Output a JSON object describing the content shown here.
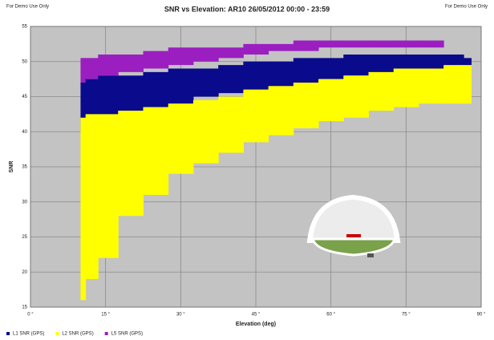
{
  "chart_data": {
    "type": "range",
    "title": "SNR vs Elevation: AR10 26/05/2012 00:00 - 23:59",
    "corner_left": "For Demo Use Only",
    "corner_right": "For Demo Use Only",
    "x_label": "Elevation (deg)",
    "y_label": "SNR",
    "x": [
      10,
      12,
      15,
      20,
      25,
      30,
      35,
      40,
      45,
      50,
      55,
      60,
      65,
      70,
      75,
      80,
      85,
      88
    ],
    "series": [
      {
        "name": "L5 SNR (GPS)",
        "color": "#9b1fc0",
        "low": [
          47,
          47.5,
          48,
          48.5,
          49,
          49.5,
          50,
          50.5,
          51,
          51.5,
          51.5,
          52,
          52,
          52,
          52,
          52,
          null,
          null
        ],
        "high": [
          50.5,
          50.5,
          51,
          51,
          51.5,
          52,
          52,
          52,
          52.5,
          52.5,
          53,
          53,
          53,
          53,
          53,
          53,
          null,
          null
        ]
      },
      {
        "name": "L1 SNR (GPS)",
        "color": "#0a0a8c",
        "low": [
          40,
          41,
          42,
          43,
          43.5,
          44,
          45,
          45.5,
          46,
          46.5,
          47,
          47.5,
          48,
          48,
          48.5,
          49,
          49,
          49
        ],
        "high": [
          47,
          47.5,
          48,
          48,
          48.5,
          49,
          49,
          49.5,
          50,
          50,
          50.5,
          50.5,
          51,
          51,
          51,
          51,
          51,
          50.5
        ]
      },
      {
        "name": "L2 SNR (GPS)",
        "color": "#ffff00",
        "low": [
          16,
          19,
          22,
          28,
          31,
          34,
          35.5,
          37,
          38.5,
          39.5,
          40.5,
          41.5,
          42,
          43,
          43.5,
          44,
          44,
          44
        ],
        "high": [
          42,
          42.5,
          42.5,
          43,
          43.5,
          44,
          44.5,
          45,
          46,
          46.5,
          47,
          47.5,
          48,
          48.5,
          49,
          49,
          49.5,
          49.5
        ]
      }
    ],
    "legend_order": [
      1,
      2,
      0
    ],
    "xlim": [
      0,
      90
    ],
    "xticks": [
      {
        "value": 0,
        "label": "0 °"
      },
      {
        "value": 15,
        "label": "15 °"
      },
      {
        "value": 30,
        "label": "30 °"
      },
      {
        "value": 45,
        "label": "45 °"
      },
      {
        "value": 60,
        "label": "60 °"
      },
      {
        "value": 75,
        "label": "75 °"
      },
      {
        "value": 90,
        "label": "90 °"
      }
    ],
    "ylim": [
      15,
      55
    ],
    "yticks": [
      15,
      20,
      25,
      30,
      35,
      40,
      45,
      50,
      55
    ],
    "grid": true
  }
}
